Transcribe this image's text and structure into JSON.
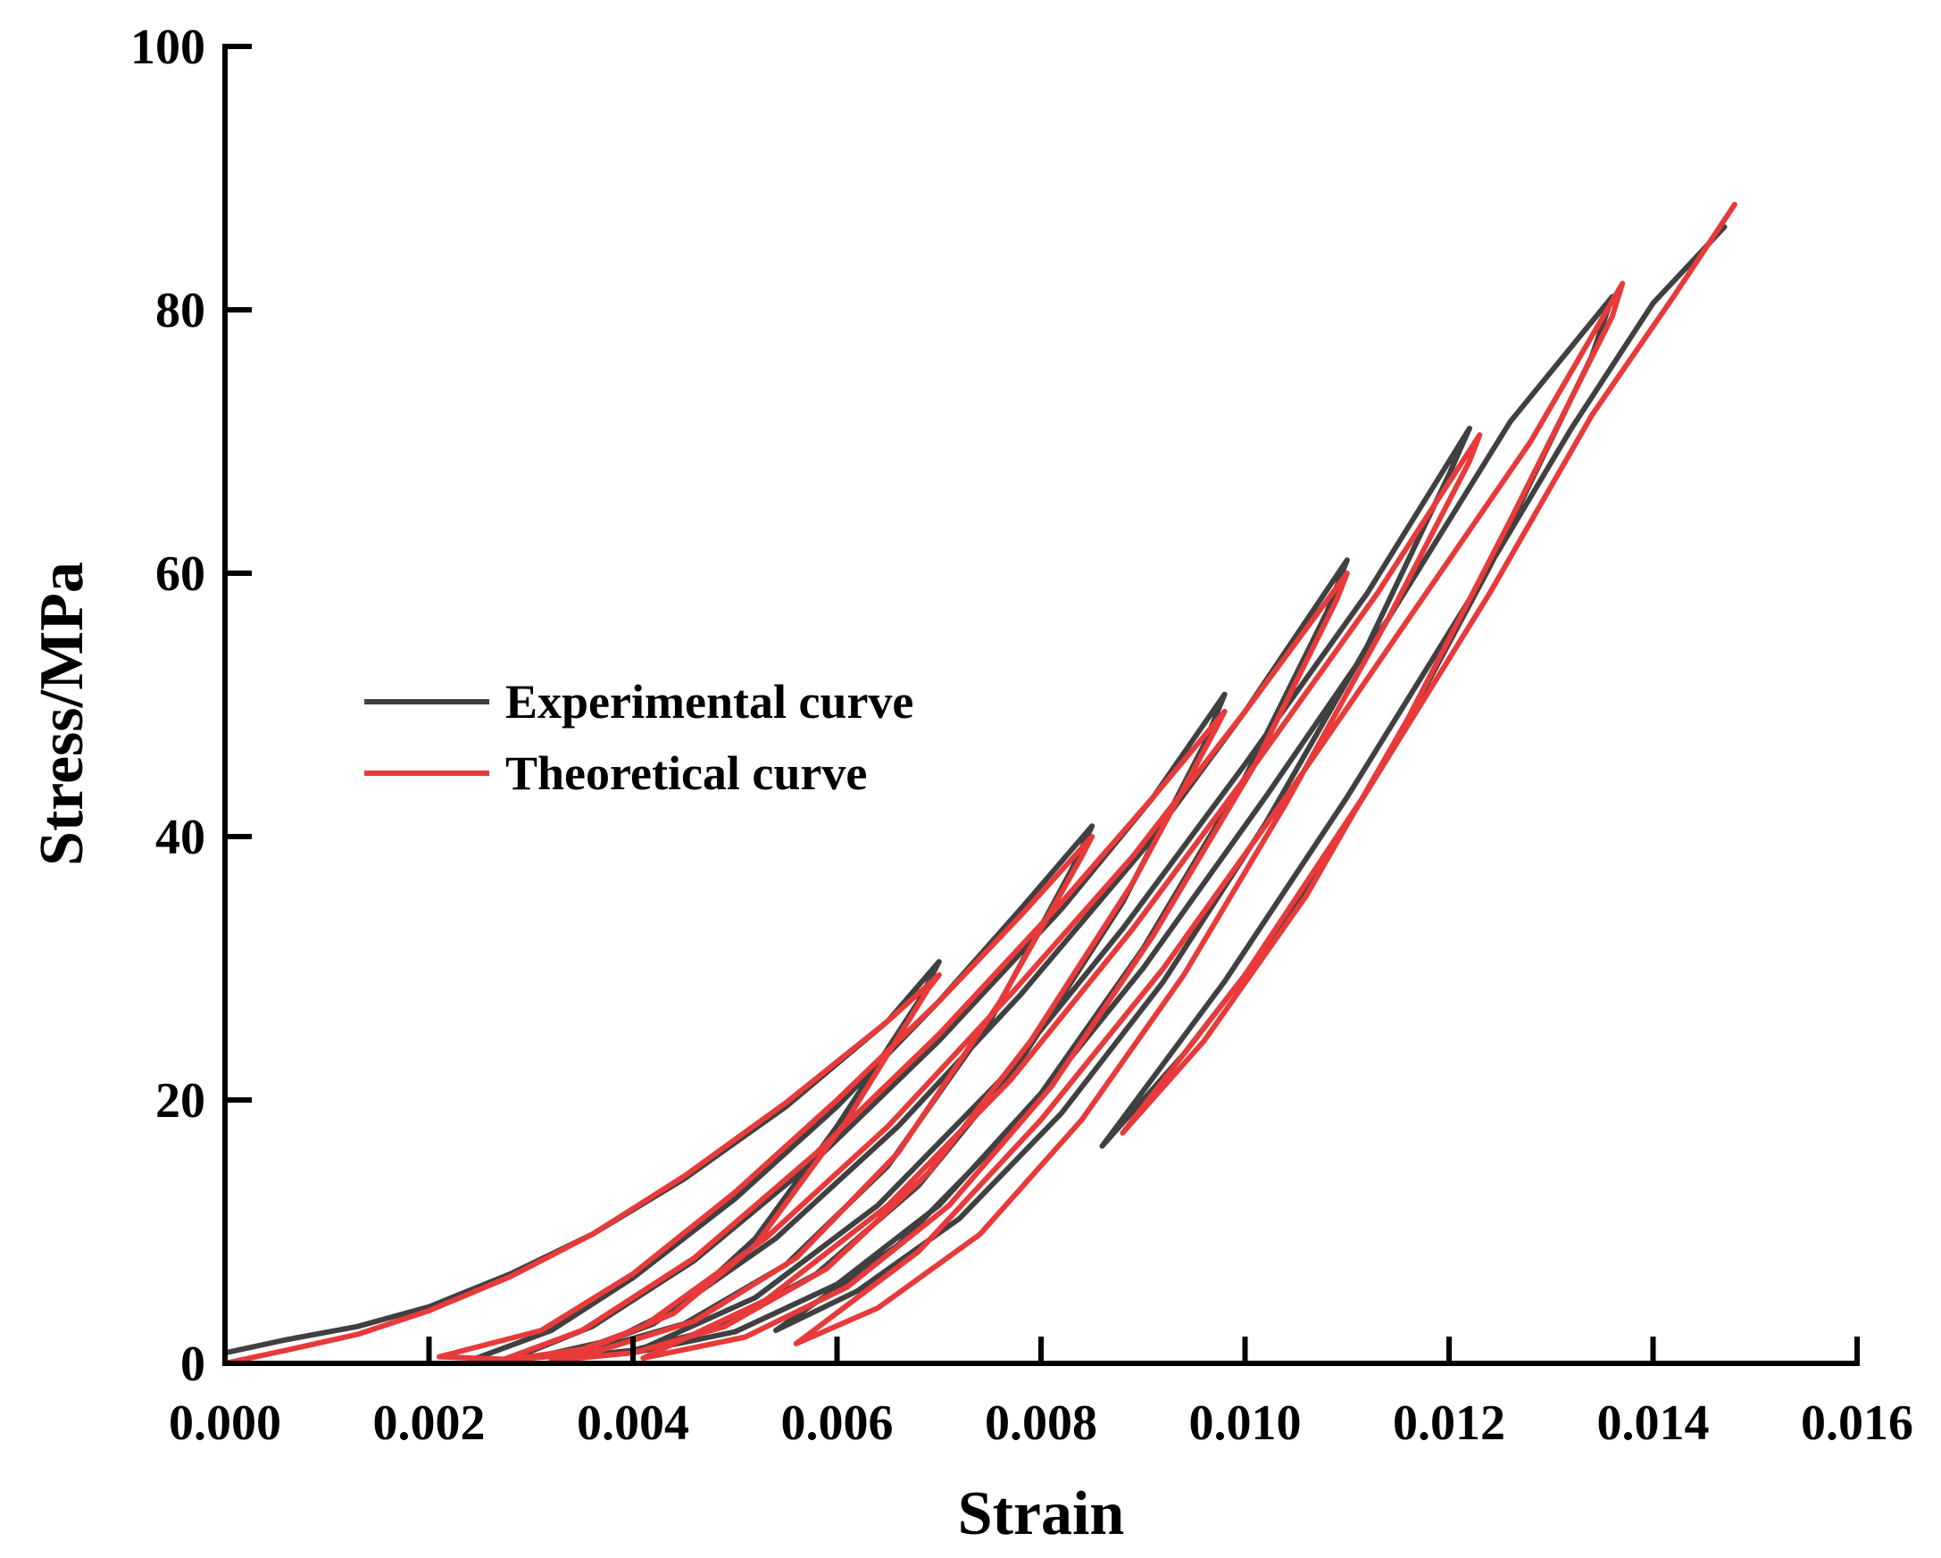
{
  "chart_data": {
    "type": "line",
    "title": "",
    "xlabel": "Strain",
    "ylabel": "Stress/MPa",
    "xlim": [
      0,
      0.016
    ],
    "ylim": [
      0,
      100
    ],
    "x_ticks": [
      0,
      0.002,
      0.004,
      0.006,
      0.008,
      0.01,
      0.012,
      0.014,
      0.016
    ],
    "x_tick_labels": [
      "0.000",
      "0.002",
      "0.004",
      "0.006",
      "0.008",
      "0.010",
      "0.012",
      "0.014",
      "0.016"
    ],
    "y_ticks": [
      0,
      20,
      40,
      60,
      80,
      100
    ],
    "y_tick_labels": [
      "0",
      "20",
      "40",
      "60",
      "80",
      "100"
    ],
    "grid": false,
    "legend_position": "middle-left",
    "series": [
      {
        "name": "Experimental curve",
        "color": "#404040",
        "points": [
          [
            0.0,
            0.8
          ],
          [
            0.0006,
            1.8
          ],
          [
            0.0013,
            2.8
          ],
          [
            0.002,
            4.3
          ],
          [
            0.0028,
            6.8
          ],
          [
            0.0036,
            9.8
          ],
          [
            0.0045,
            14.0
          ],
          [
            0.0055,
            19.5
          ],
          [
            0.0065,
            26.0
          ],
          [
            0.007,
            30.5
          ],
          [
            0.0068,
            27.5
          ],
          [
            0.006,
            18.0
          ],
          [
            0.0052,
            9.5
          ],
          [
            0.0045,
            4.5
          ],
          [
            0.0038,
            1.8
          ],
          [
            0.003,
            0.4
          ],
          [
            0.0024,
            0.2
          ],
          [
            0.0032,
            2.5
          ],
          [
            0.004,
            6.5
          ],
          [
            0.005,
            12.5
          ],
          [
            0.006,
            19.5
          ],
          [
            0.007,
            27.5
          ],
          [
            0.0078,
            34.5
          ],
          [
            0.0085,
            40.8
          ],
          [
            0.0083,
            37.5
          ],
          [
            0.0075,
            26.0
          ],
          [
            0.0065,
            15.0
          ],
          [
            0.0055,
            7.5
          ],
          [
            0.0045,
            3.0
          ],
          [
            0.0035,
            0.8
          ],
          [
            0.0028,
            0.3
          ],
          [
            0.0036,
            2.8
          ],
          [
            0.0046,
            7.8
          ],
          [
            0.0058,
            15.5
          ],
          [
            0.007,
            24.5
          ],
          [
            0.0082,
            34.5
          ],
          [
            0.0091,
            43.0
          ],
          [
            0.0098,
            50.8
          ],
          [
            0.0096,
            47.0
          ],
          [
            0.0088,
            35.0
          ],
          [
            0.0078,
            23.0
          ],
          [
            0.0068,
            13.5
          ],
          [
            0.0058,
            6.8
          ],
          [
            0.0048,
            2.6
          ],
          [
            0.004,
            1.0
          ],
          [
            0.0033,
            0.4
          ],
          [
            0.0042,
            3.0
          ],
          [
            0.0054,
            9.5
          ],
          [
            0.0066,
            18.0
          ],
          [
            0.0078,
            28.0
          ],
          [
            0.009,
            39.0
          ],
          [
            0.01,
            49.5
          ],
          [
            0.011,
            61.0
          ],
          [
            0.0108,
            57.0
          ],
          [
            0.01,
            44.5
          ],
          [
            0.009,
            31.5
          ],
          [
            0.008,
            20.5
          ],
          [
            0.007,
            12.0
          ],
          [
            0.006,
            6.0
          ],
          [
            0.005,
            2.4
          ],
          [
            0.004,
            0.8
          ],
          [
            0.0052,
            5.0
          ],
          [
            0.0064,
            12.0
          ],
          [
            0.0076,
            21.5
          ],
          [
            0.0088,
            33.0
          ],
          [
            0.01,
            45.5
          ],
          [
            0.0112,
            58.5
          ],
          [
            0.0122,
            71.0
          ],
          [
            0.012,
            67.5
          ],
          [
            0.0112,
            54.5
          ],
          [
            0.0102,
            41.0
          ],
          [
            0.0092,
            29.0
          ],
          [
            0.0082,
            19.0
          ],
          [
            0.0072,
            11.0
          ],
          [
            0.0062,
            5.5
          ],
          [
            0.0054,
            2.5
          ],
          [
            0.0066,
            9.0
          ],
          [
            0.0078,
            18.5
          ],
          [
            0.009,
            30.0
          ],
          [
            0.0102,
            43.0
          ],
          [
            0.0114,
            56.5
          ],
          [
            0.0126,
            71.5
          ],
          [
            0.0136,
            81.0
          ],
          [
            0.0134,
            76.5
          ],
          [
            0.0124,
            60.5
          ],
          [
            0.0114,
            46.0
          ],
          [
            0.0104,
            33.5
          ],
          [
            0.0094,
            23.5
          ],
          [
            0.0086,
            16.5
          ],
          [
            0.0098,
            29.0
          ],
          [
            0.011,
            43.0
          ],
          [
            0.0122,
            58.0
          ],
          [
            0.0132,
            71.0
          ],
          [
            0.014,
            80.5
          ],
          [
            0.0147,
            86.3
          ]
        ]
      },
      {
        "name": "Theoretical curve",
        "color": "#e83a3a",
        "points": [
          [
            0.0,
            0.0
          ],
          [
            0.0006,
            1.0
          ],
          [
            0.0013,
            2.2
          ],
          [
            0.002,
            4.0
          ],
          [
            0.0028,
            6.6
          ],
          [
            0.0036,
            9.8
          ],
          [
            0.0045,
            14.2
          ],
          [
            0.0055,
            19.8
          ],
          [
            0.0065,
            26.0
          ],
          [
            0.007,
            29.5
          ],
          [
            0.0069,
            28.5
          ],
          [
            0.0061,
            18.5
          ],
          [
            0.0052,
            9.0
          ],
          [
            0.0044,
            3.8
          ],
          [
            0.0036,
            1.2
          ],
          [
            0.0028,
            0.3
          ],
          [
            0.0021,
            0.5
          ],
          [
            0.0031,
            2.5
          ],
          [
            0.004,
            6.8
          ],
          [
            0.005,
            13.0
          ],
          [
            0.006,
            20.0
          ],
          [
            0.007,
            27.5
          ],
          [
            0.0078,
            34.0
          ],
          [
            0.0085,
            40.0
          ],
          [
            0.0084,
            38.5
          ],
          [
            0.0076,
            27.5
          ],
          [
            0.0066,
            16.0
          ],
          [
            0.0056,
            8.0
          ],
          [
            0.0046,
            3.2
          ],
          [
            0.0036,
            0.8
          ],
          [
            0.0027,
            0.2
          ],
          [
            0.0035,
            2.5
          ],
          [
            0.0046,
            8.0
          ],
          [
            0.0058,
            16.0
          ],
          [
            0.007,
            25.0
          ],
          [
            0.0082,
            35.0
          ],
          [
            0.0091,
            43.0
          ],
          [
            0.0098,
            49.5
          ],
          [
            0.0097,
            48.0
          ],
          [
            0.0089,
            36.5
          ],
          [
            0.0079,
            24.5
          ],
          [
            0.0069,
            14.5
          ],
          [
            0.0059,
            7.2
          ],
          [
            0.0049,
            2.8
          ],
          [
            0.004,
            0.8
          ],
          [
            0.0032,
            0.2
          ],
          [
            0.0041,
            2.8
          ],
          [
            0.0053,
            9.5
          ],
          [
            0.0065,
            18.0
          ],
          [
            0.0077,
            28.0
          ],
          [
            0.0089,
            38.5
          ],
          [
            0.01,
            49.5
          ],
          [
            0.011,
            60.0
          ],
          [
            0.0109,
            58.0
          ],
          [
            0.0101,
            45.5
          ],
          [
            0.0091,
            32.5
          ],
          [
            0.0081,
            21.0
          ],
          [
            0.0071,
            12.0
          ],
          [
            0.0061,
            5.8
          ],
          [
            0.0051,
            2.0
          ],
          [
            0.0041,
            0.4
          ],
          [
            0.0053,
            4.8
          ],
          [
            0.0065,
            12.0
          ],
          [
            0.0077,
            21.5
          ],
          [
            0.0089,
            33.0
          ],
          [
            0.0101,
            45.5
          ],
          [
            0.0113,
            58.5
          ],
          [
            0.0123,
            70.5
          ],
          [
            0.0122,
            68.5
          ],
          [
            0.0114,
            56.5
          ],
          [
            0.0104,
            42.5
          ],
          [
            0.0094,
            29.5
          ],
          [
            0.0084,
            18.5
          ],
          [
            0.0074,
            9.8
          ],
          [
            0.0064,
            4.2
          ],
          [
            0.0056,
            1.5
          ],
          [
            0.0068,
            8.5
          ],
          [
            0.008,
            18.5
          ],
          [
            0.0092,
            30.0
          ],
          [
            0.0104,
            43.0
          ],
          [
            0.0116,
            56.5
          ],
          [
            0.0128,
            70.0
          ],
          [
            0.0137,
            82.0
          ],
          [
            0.0136,
            79.5
          ],
          [
            0.0126,
            64.0
          ],
          [
            0.0116,
            49.0
          ],
          [
            0.0106,
            35.5
          ],
          [
            0.0096,
            24.5
          ],
          [
            0.0088,
            17.5
          ],
          [
            0.01,
            29.5
          ],
          [
            0.0112,
            43.5
          ],
          [
            0.0124,
            58.5
          ],
          [
            0.0134,
            72.0
          ],
          [
            0.0142,
            81.0
          ],
          [
            0.0148,
            88.0
          ]
        ]
      }
    ]
  }
}
